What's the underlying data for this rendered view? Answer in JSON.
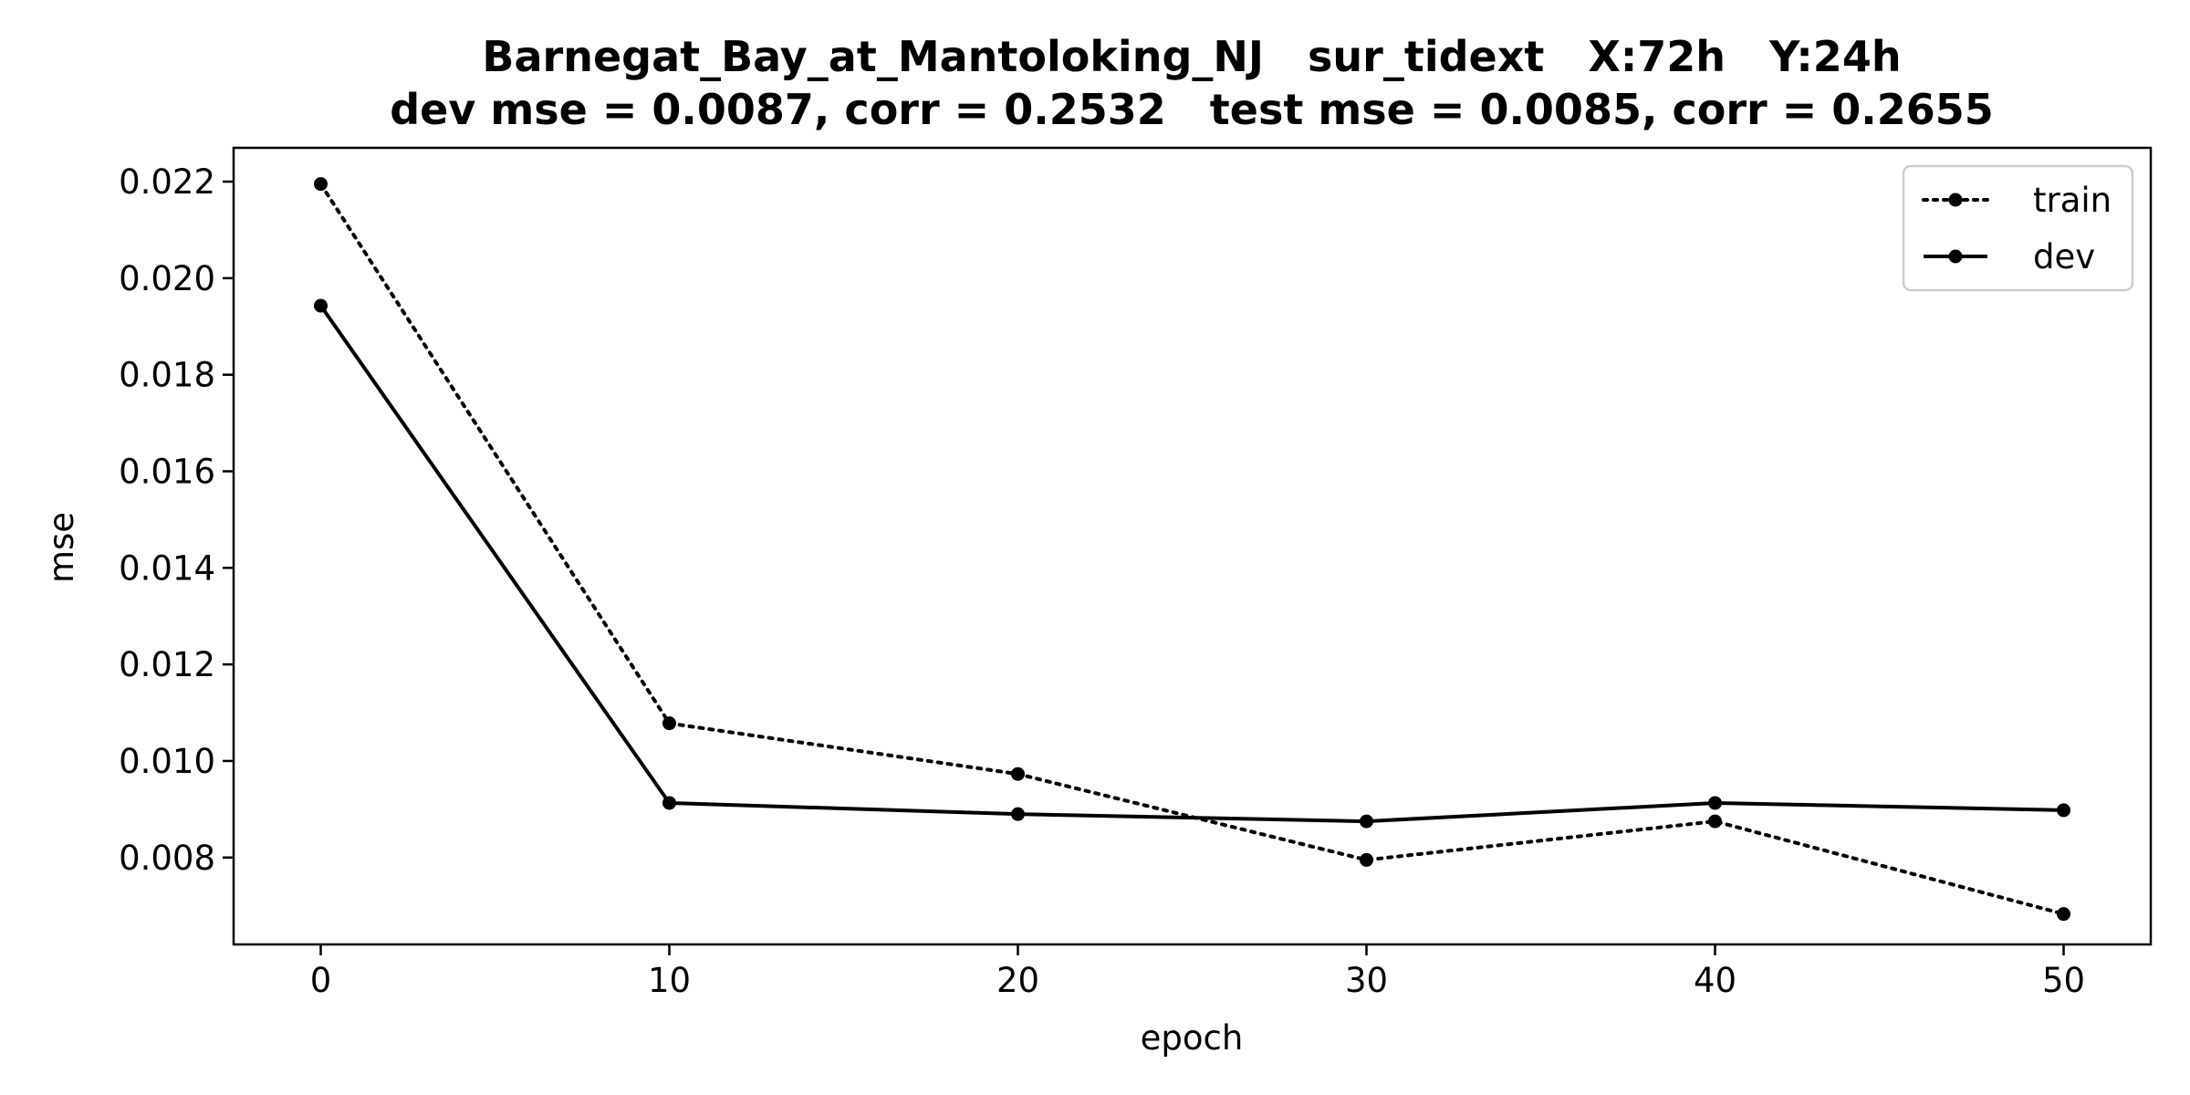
{
  "chart_data": {
    "type": "line",
    "title": "Barnegat_Bay_at_Mantoloking_NJ   sur_tidext   X:72h   Y:24h",
    "subtitle": "dev mse = 0.0087, corr = 0.2532   test mse = 0.0085, corr = 0.2655",
    "xlabel": "epoch",
    "ylabel": "mse",
    "x": [
      0,
      10,
      20,
      30,
      40,
      50
    ],
    "xlim": [
      -2.5,
      52.5
    ],
    "ylim": [
      0.0062,
      0.0227
    ],
    "xticks": [
      0,
      10,
      20,
      30,
      40,
      50
    ],
    "xtick_labels": [
      "0",
      "10",
      "20",
      "30",
      "40",
      "50"
    ],
    "yticks": [
      0.008,
      0.01,
      0.012,
      0.014,
      0.016,
      0.018,
      0.02,
      0.022
    ],
    "ytick_labels": [
      "0.008",
      "0.010",
      "0.012",
      "0.014",
      "0.016",
      "0.018",
      "0.020",
      "0.022"
    ],
    "grid": false,
    "legend_position": "top-right",
    "series": [
      {
        "name": "train",
        "style": "dotted",
        "color": "#000000",
        "values": [
          0.02195,
          0.01078,
          0.00973,
          0.00795,
          0.00875,
          0.00683
        ]
      },
      {
        "name": "dev",
        "style": "solid",
        "color": "#000000",
        "values": [
          0.01943,
          0.00913,
          0.0089,
          0.00875,
          0.00913,
          0.00898
        ]
      }
    ]
  }
}
